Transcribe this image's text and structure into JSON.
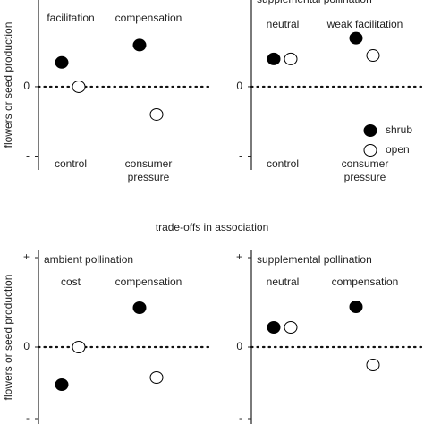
{
  "heading": "trade-offs in association",
  "chart_data": [
    {
      "type": "scatter",
      "ylabel": "flowers or seed production",
      "categories": [
        "control",
        "consumer pressure"
      ],
      "annotations": [
        "facilitation",
        "compensation"
      ],
      "series": [
        {
          "name": "shrub",
          "color": "#000000",
          "values": [
            0.35,
            0.6
          ]
        },
        {
          "name": "open",
          "color": "#ffffff",
          "values": [
            0,
            -0.4
          ]
        }
      ],
      "ylim": [
        -1.2,
        1.25
      ],
      "yticks": [
        0,
        {
          "value": -1,
          "label": "-"
        }
      ]
    },
    {
      "type": "scatter",
      "title": "supplemental pollination",
      "categories": [
        "control",
        "consumer pressure"
      ],
      "annotations": [
        "neutral",
        "weak facilitation"
      ],
      "series": [
        {
          "name": "shrub",
          "color": "#000000",
          "values": [
            0.4,
            0.7
          ]
        },
        {
          "name": "open",
          "color": "#ffffff",
          "values": [
            0.4,
            0.45
          ]
        }
      ],
      "ylim": [
        -1.2,
        1.25
      ],
      "yticks": [
        0,
        {
          "value": -1,
          "label": "-"
        }
      ],
      "legend": "lower right"
    },
    {
      "type": "scatter",
      "title": "ambient pollination",
      "ylabel": "flowers or seed production",
      "annotations": [
        "cost",
        "compensation"
      ],
      "series": [
        {
          "name": "shrub",
          "color": "#000000",
          "values": [
            -0.42,
            0.44
          ]
        },
        {
          "name": "open",
          "color": "#ffffff",
          "values": [
            0,
            -0.34
          ]
        }
      ],
      "ylim": [
        -0.86,
        1.08
      ],
      "yticks": [
        {
          "value": 1,
          "label": "+"
        },
        0,
        {
          "value": -0.8,
          "label": "-"
        }
      ]
    },
    {
      "type": "scatter",
      "title": "supplemental pollination",
      "annotations": [
        "neutral",
        "compensation"
      ],
      "series": [
        {
          "name": "shrub",
          "color": "#000000",
          "values": [
            0.22,
            0.45
          ]
        },
        {
          "name": "open",
          "color": "#ffffff",
          "values": [
            0.22,
            -0.2
          ]
        }
      ],
      "ylim": [
        -0.86,
        1.08
      ],
      "yticks": [
        {
          "value": 1,
          "label": "+"
        },
        0,
        {
          "value": -0.8,
          "label": "-"
        }
      ]
    }
  ]
}
